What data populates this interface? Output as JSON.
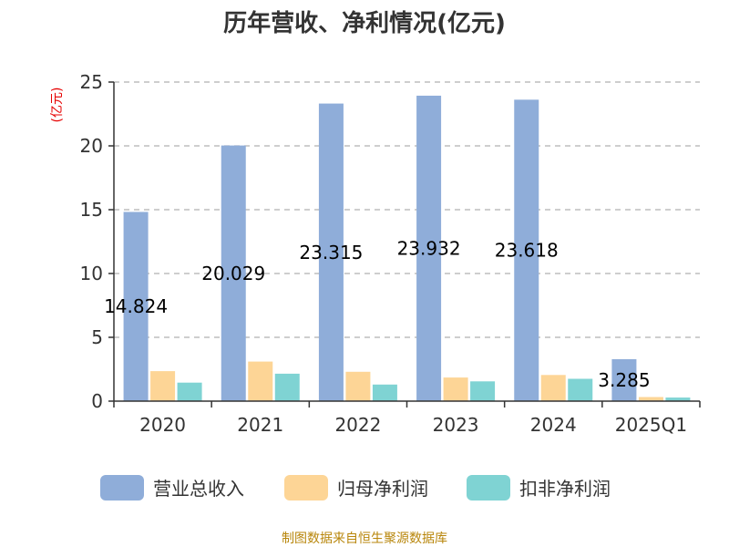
{
  "chart_data": {
    "type": "bar",
    "title": "历年营收、净利情况(亿元)",
    "ylabel": "(亿元)",
    "xlabel": "",
    "categories": [
      "2020",
      "2021",
      "2022",
      "2023",
      "2024",
      "2025Q1"
    ],
    "ylim": [
      0,
      25
    ],
    "yticks": [
      0,
      5,
      10,
      15,
      20,
      25
    ],
    "grid": true,
    "legend_position": "bottom",
    "series": [
      {
        "name": "营业总收入",
        "color": "#8fadd9",
        "values": [
          14.824,
          20.029,
          23.315,
          23.932,
          23.618,
          3.285
        ],
        "labels": [
          "14.824",
          "20.029",
          "23.315",
          "23.932",
          "23.618",
          "3.285"
        ]
      },
      {
        "name": "归母净利润",
        "color": "#fdd596",
        "values": [
          2.35,
          3.1,
          2.3,
          1.85,
          2.05,
          0.32
        ]
      },
      {
        "name": "扣非净利润",
        "color": "#7fd3d3",
        "values": [
          1.45,
          2.15,
          1.3,
          1.55,
          1.75,
          0.28
        ]
      }
    ],
    "source": "制图数据来自恒生聚源数据库"
  }
}
